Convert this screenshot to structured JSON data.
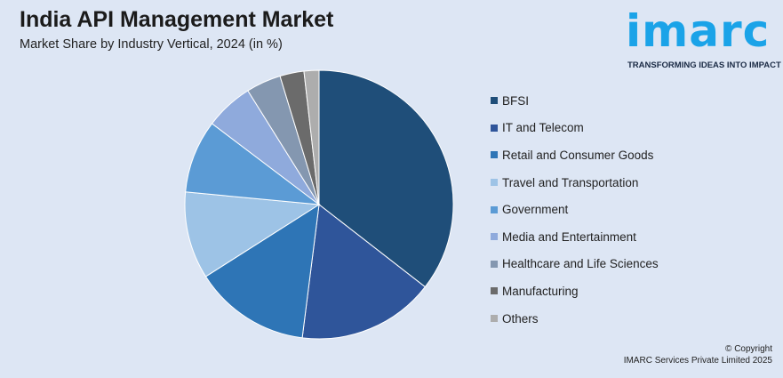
{
  "header": {
    "title": "India API Management Market",
    "subtitle": "Market Share by Industry Vertical, 2024 (in %)"
  },
  "logo": {
    "word": "imarc",
    "tagline": "TRANSFORMING IDEAS INTO IMPACT"
  },
  "footer": {
    "copyright": "© Copyright",
    "company": "IMARC Services Private Limited 2025"
  },
  "chart_data": {
    "type": "pie",
    "title": "India API Management Market",
    "subtitle": "Market Share by Industry Vertical, 2024 (in %)",
    "legend_position": "right",
    "categories": [
      "BFSI",
      "IT and Telecom",
      "Retail and Consumer Goods",
      "Travel and Transportation",
      "Government",
      "Media and Entertainment",
      "Healthcare and Life Sciences",
      "Manufacturing",
      "Others"
    ],
    "values": [
      35.5,
      16.5,
      14.0,
      10.5,
      8.8,
      5.8,
      4.2,
      2.9,
      1.8
    ],
    "colors": [
      "#1f4e79",
      "#2f559a",
      "#2e75b6",
      "#9dc3e6",
      "#5b9bd5",
      "#8faadc",
      "#8497b0",
      "#6b6b6b",
      "#adadad"
    ]
  }
}
